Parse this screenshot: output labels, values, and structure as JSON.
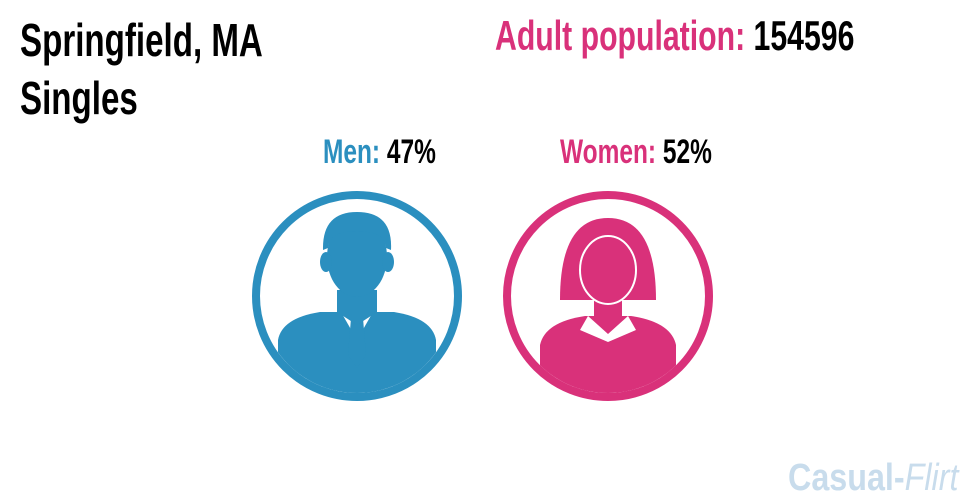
{
  "header": {
    "title": "Springfield, MA",
    "subtitle": "Singles"
  },
  "population": {
    "label": "Adult population:",
    "value": "154596"
  },
  "men": {
    "label": "Men:",
    "value": "47%"
  },
  "women": {
    "label": "Women:",
    "value": "52%"
  },
  "watermark": {
    "part1": "Casual",
    "separator": "-",
    "part2": "Flirt"
  }
}
